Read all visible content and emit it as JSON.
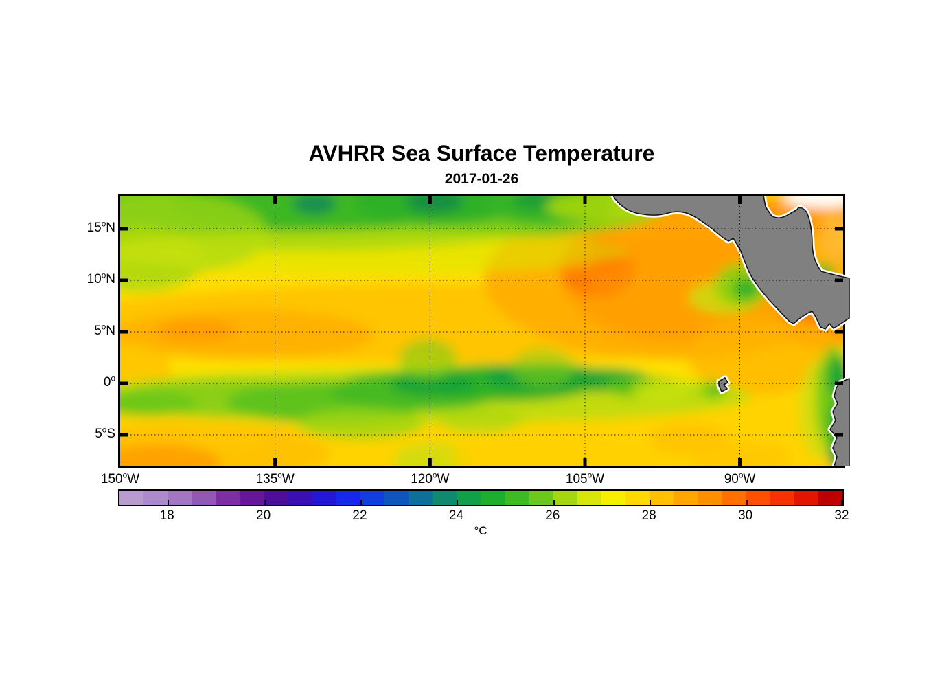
{
  "header": {
    "title": "AVHRR Sea Surface Temperature",
    "date": "2017-01-26"
  },
  "map": {
    "x_axis": {
      "ticks": [
        {
          "deg": "150",
          "sup": "o",
          "dir": "W",
          "frac": 0
        },
        {
          "deg": "135",
          "sup": "o",
          "dir": "W",
          "frac": 0.2143
        },
        {
          "deg": "120",
          "sup": "o",
          "dir": "W",
          "frac": 0.4286
        },
        {
          "deg": "105",
          "sup": "o",
          "dir": "W",
          "frac": 0.6429
        },
        {
          "deg": "90",
          "sup": "o",
          "dir": "W",
          "frac": 0.8571
        }
      ]
    },
    "y_axis": {
      "ticks": [
        {
          "deg": "15",
          "sup": "o",
          "dir": "N",
          "frac": 0.1221
        },
        {
          "deg": "10",
          "sup": "o",
          "dir": "N",
          "frac": 0.313
        },
        {
          "deg": "5",
          "sup": "o",
          "dir": "N",
          "frac": 0.5038
        },
        {
          "deg": "0",
          "sup": "o",
          "dir": "",
          "frac": 0.6947
        },
        {
          "deg": "5",
          "sup": "o",
          "dir": "S",
          "frac": 0.8855
        }
      ]
    }
  },
  "colorbar": {
    "min": 17,
    "max": 32,
    "unit": "°C",
    "ticks": [
      18,
      20,
      22,
      24,
      26,
      28,
      30,
      32
    ],
    "palette": [
      "#b79bd1",
      "#ad8aca",
      "#a376c2",
      "#9357b4",
      "#7b2fa3",
      "#661698",
      "#4f0d9b",
      "#3a0fb4",
      "#2417d6",
      "#1728ee",
      "#123ede",
      "#0f55be",
      "#0e6f9a",
      "#0d8a70",
      "#0fa148",
      "#1cae2e",
      "#3dba24",
      "#6ec81b",
      "#a4d611",
      "#d8e607",
      "#f8ef00",
      "#ffd900",
      "#ffc000",
      "#ffa700",
      "#ff8e00",
      "#ff7000",
      "#ff5000",
      "#f93000",
      "#e51400",
      "#bf0000"
    ]
  },
  "colors": {
    "land": "#808080",
    "coastline": "#141414",
    "coast_halo": "#ffffff",
    "background": "#ffffff",
    "grid": "#000000"
  },
  "chart_data": {
    "type": "heatmap",
    "title": "AVHRR Sea Surface Temperature",
    "subtitle": "2017-01-26",
    "x_tick_labels": [
      "150°W",
      "135°W",
      "120°W",
      "105°W",
      "90°W"
    ],
    "y_tick_labels": [
      "15°N",
      "10°N",
      "5°N",
      "0°",
      "5°S"
    ],
    "lon_range": [
      -150,
      -80
    ],
    "lat_range": [
      -8,
      18.2
    ],
    "grid": "dotted, every 5° latitude and 15° longitude",
    "colorbar": {
      "units": "°C",
      "range": [
        17,
        32
      ],
      "ticks": [
        18,
        20,
        22,
        24,
        26,
        28,
        30,
        32
      ],
      "orientation": "horizontal",
      "position": "below map"
    },
    "land_regions": [
      "Mexico and Central America (upper right, gray)",
      "South America / Ecuador-Peru coast (lower right, gray)",
      "Galápagos Islands (small gray island near 0.5°S, 90.5°W)"
    ],
    "sst_features": [
      {
        "region": "Band north of ~13°N, 150°W–122°W",
        "approx_sst_c": "24–25.5 (cool green band)"
      },
      {
        "region": "Northeast sector 8–15°N, 105°W–85°W incl. Gulf of Tehuantepec offshore",
        "approx_sst_c": "28–29.5 (warm orange patches)"
      },
      {
        "region": "ITCZ band 5–10°N across basin",
        "approx_sst_c": "27–28"
      },
      {
        "region": "Equatorial cold tongue 2°S–2°N, 150°W–112°W (wavy)",
        "approx_sst_c": "24–25.5"
      },
      {
        "region": "Gulf of Papagayo upwelling ~10–11°N, 88°W",
        "approx_sst_c": "24–26"
      },
      {
        "region": "Ecuador/Peru coastal upwelling 0–8°S near 80°W",
        "approx_sst_c": "23–25"
      },
      {
        "region": "South of 3°S offshore",
        "approx_sst_c": "26–27.5"
      },
      {
        "region": "Background tropical surface water",
        "approx_sst_c": "26–27"
      },
      {
        "region": "Caribbean corner near top-right",
        "approx_sst_c": "no data (white) / 27–28"
      }
    ]
  }
}
